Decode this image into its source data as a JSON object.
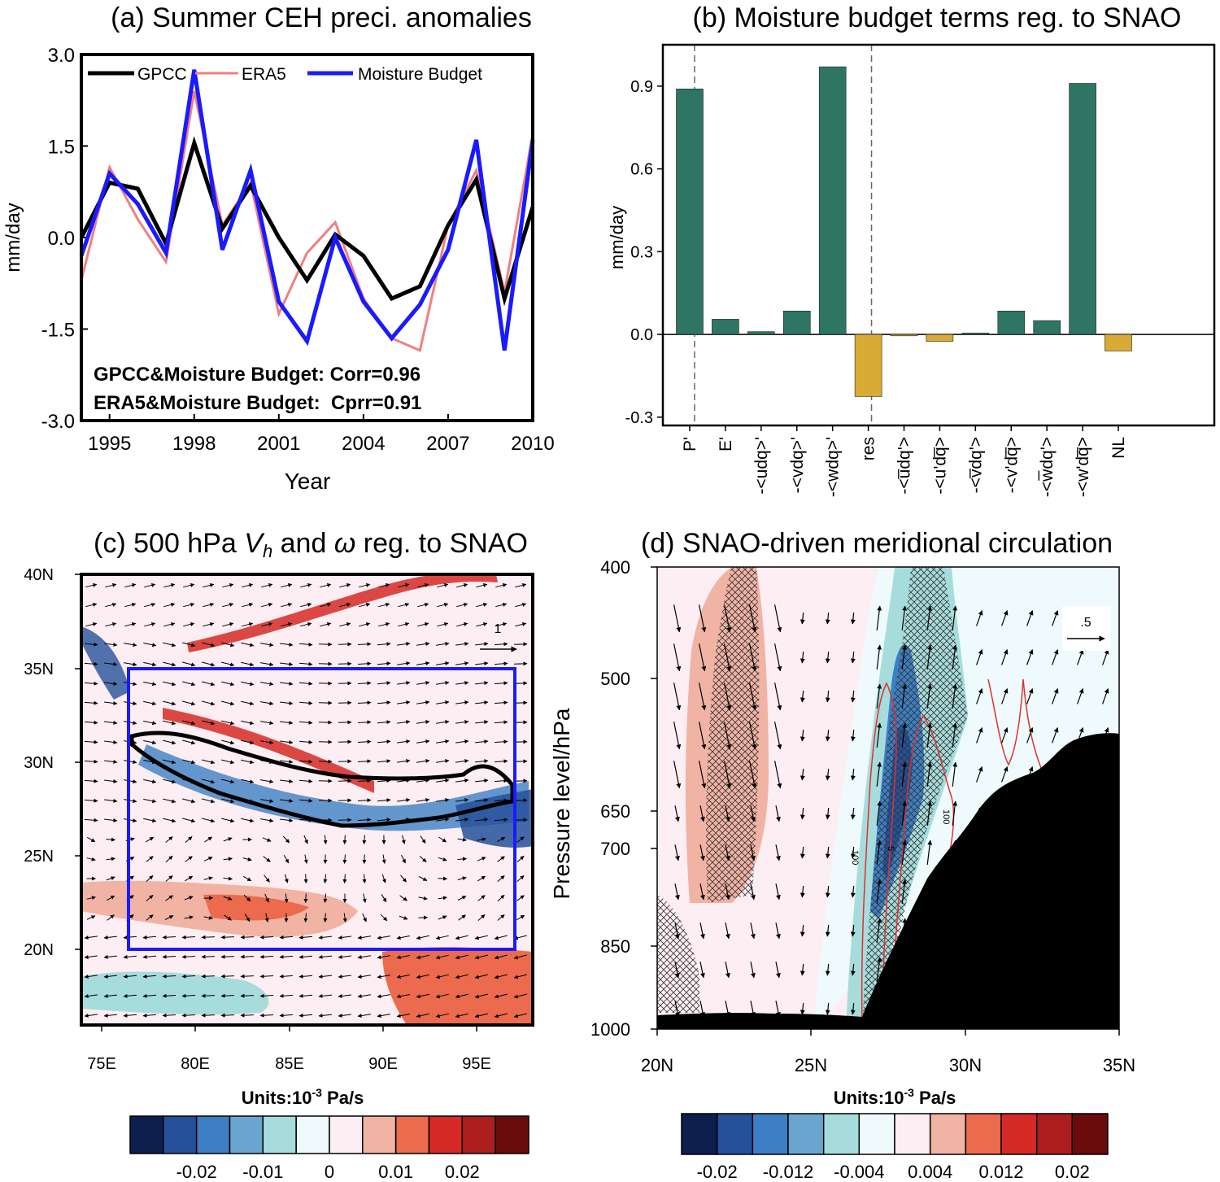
{
  "colors": {
    "gpcc": "#000000",
    "era5": "#f08080",
    "budget": "#1a1aff",
    "bar_pos": "#2f7563",
    "bar_neg": "#d8ab35",
    "box": "#1a1aff",
    "contour": "#e03030",
    "terrain": "#000000"
  },
  "panel_a": {
    "title": "(a) Summer CEH preci. anomalies",
    "ylabel": "mm/day",
    "xlabel": "Year",
    "corr_text_1": "GPCC&Moisture Budget: Corr=0.96",
    "corr_text_2": "ERA5&Moisture Budget:  Cprr=0.91",
    "chart_data": {
      "type": "line",
      "x": [
        1994,
        1995,
        1996,
        1997,
        1998,
        1999,
        2000,
        2001,
        2002,
        2003,
        2004,
        2005,
        2006,
        2007,
        2008,
        2009,
        2010
      ],
      "xticks": [
        "1995",
        "1998",
        "2001",
        "2004",
        "2007",
        "2010"
      ],
      "yticks": [
        "3.0",
        "1.5",
        "0.0",
        "-1.5",
        "-3.0"
      ],
      "ylim": [
        -3.0,
        3.0
      ],
      "legend_position": "top",
      "series": [
        {
          "name": "GPCC",
          "values": [
            0.0,
            0.9,
            0.8,
            -0.1,
            1.55,
            0.15,
            0.85,
            0.0,
            -0.7,
            0.05,
            -0.3,
            -1.0,
            -0.8,
            0.2,
            0.95,
            -1.0,
            0.5
          ]
        },
        {
          "name": "ERA5",
          "values": [
            -0.7,
            1.15,
            0.3,
            -0.4,
            2.4,
            0.2,
            0.9,
            -1.25,
            -0.25,
            0.25,
            -1.0,
            -1.65,
            -1.85,
            0.2,
            1.1,
            -0.9,
            1.7
          ]
        },
        {
          "name": "Moisture Budget",
          "values": [
            -0.3,
            1.05,
            0.55,
            -0.25,
            2.75,
            -0.2,
            1.1,
            -1.05,
            -1.7,
            0.0,
            -1.05,
            -1.65,
            -1.1,
            -0.2,
            1.6,
            -1.85,
            1.6
          ]
        }
      ]
    }
  },
  "panel_b": {
    "title": "(b) Moisture budget terms reg. to SNAO",
    "ylabel": "mm/day",
    "chart_data": {
      "type": "bar",
      "categories": [
        "P'",
        "E'",
        "-<udq>'",
        "-<vdq>'",
        "-<wdq>'",
        "res",
        "-<u̅dq'>",
        "-<u'dq̅>",
        "-<v̅dq'>",
        "-<v'dq̅>",
        "-<w̅dq'>",
        "-<w'dq̅>",
        "NL"
      ],
      "values": [
        0.89,
        0.055,
        0.01,
        0.085,
        0.97,
        -0.225,
        -0.005,
        -0.025,
        0.005,
        0.085,
        0.05,
        0.91,
        -0.06
      ],
      "yticks": [
        "0.9",
        "0.6",
        "0.3",
        "0.0",
        "-0.3"
      ],
      "ylim": [
        -0.33,
        1.05
      ],
      "dashed_separators_after": [
        0,
        5
      ]
    }
  },
  "panel_c": {
    "title_pre": "(c) 500 hPa ",
    "title_v": "V",
    "title_h": "h",
    "title_mid": " and ",
    "title_omega": "ω",
    "title_post": " reg. to SNAO",
    "yticks": [
      "40N",
      "35N",
      "30N",
      "25N",
      "20N"
    ],
    "xticks": [
      "75E",
      "80E",
      "85E",
      "90E",
      "95E"
    ],
    "ref_vector": "1",
    "units_label": "Units:10",
    "units_exp": "-3",
    "units_tail": " Pa/s",
    "colorbar_labels": [
      "-0.02",
      "-0.01",
      "0",
      "0.01",
      "0.02"
    ],
    "colorbar_colors": [
      "#0d1f4f",
      "#25519a",
      "#3d7fc4",
      "#6aa6d0",
      "#a7dcdc",
      "#eefafb",
      "#fdeef3",
      "#f1b3a4",
      "#ec6a4e",
      "#d52a25",
      "#ac1e1e",
      "#6b0b0b"
    ]
  },
  "panel_d": {
    "title": "(d) SNAO-driven meridional circulation",
    "ylabel": "Pressure level/hPa",
    "yticks": [
      "400",
      "500",
      "650",
      "700",
      "850",
      "1000"
    ],
    "xticks": [
      "20N",
      "25N",
      "30N",
      "35N"
    ],
    "ref_vector": ".5",
    "contour_labels": [
      "100",
      "5",
      "100"
    ],
    "units_label": "Units:10",
    "units_exp": "-3",
    "units_tail": " Pa/s",
    "colorbar_labels": [
      "-0.02",
      "-0.012",
      "-0.004",
      "0.004",
      "0.012",
      "0.02"
    ],
    "colorbar_colors": [
      "#0d1f4f",
      "#25519a",
      "#3d7fc4",
      "#6aa6d0",
      "#a7dcdc",
      "#eefafb",
      "#fdeef3",
      "#f1b3a4",
      "#ec6a4e",
      "#d52a25",
      "#ac1e1e",
      "#6b0b0b"
    ]
  }
}
